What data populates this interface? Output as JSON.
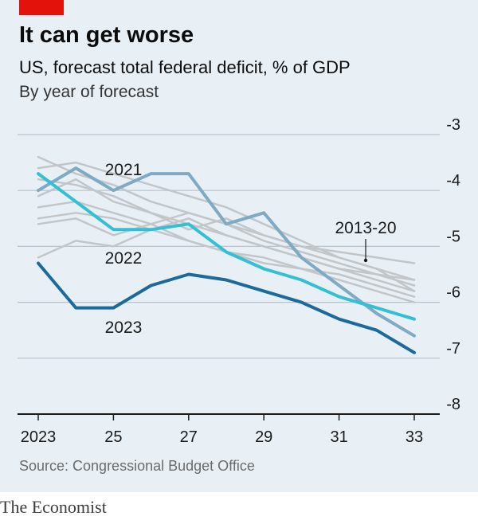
{
  "brand_name": "The Economist",
  "source": "Source: Congressional Budget Office",
  "colors": {
    "background": "#e8f0f6",
    "accent_red": "#e3120b",
    "grid": "#b7c2c9",
    "series_2013_20": "#c3c6c9",
    "series_2021": "#7eaac4",
    "series_2022": "#33c0d4",
    "series_2023": "#1b6a9b"
  },
  "chart_data": {
    "type": "line",
    "title": "It can get worse",
    "subtitle": "US, forecast total federal deficit, % of GDP",
    "description": "By year of forecast",
    "xlabel": "",
    "ylabel": "",
    "x": [
      2023,
      2024,
      2025,
      2026,
      2027,
      2028,
      2029,
      2030,
      2031,
      2032,
      2033
    ],
    "x_tick_values": [
      2023,
      2025,
      2027,
      2029,
      2031,
      2033
    ],
    "x_tick_labels": [
      "2023",
      "25",
      "27",
      "29",
      "31",
      "33"
    ],
    "ylim": [
      -8,
      -3
    ],
    "y_tick_values": [
      -3,
      -4,
      -5,
      -6,
      -7,
      -8
    ],
    "y_tick_labels": [
      "-3",
      "-4",
      "-5",
      "-6",
      "-7",
      "-8"
    ],
    "y_axis_position": "right",
    "grid": true,
    "series": [
      {
        "name": "2013-20",
        "values": [
          -3.4,
          -3.7,
          -3.9,
          -4.2,
          -4.4,
          -4.6,
          -4.8,
          -5.0,
          -5.1,
          -5.2,
          -5.3
        ],
        "color": "#c3c6c9",
        "width": 2.5
      },
      {
        "name": "",
        "values": [
          -3.6,
          -3.5,
          -3.7,
          -3.9,
          -4.1,
          -4.3,
          -4.6,
          -4.9,
          -5.2,
          -5.4,
          -5.6
        ],
        "color": "#c3c6c9",
        "width": 2.5
      },
      {
        "name": "",
        "values": [
          -3.8,
          -3.9,
          -4.1,
          -4.4,
          -4.6,
          -4.8,
          -5.0,
          -5.2,
          -5.4,
          -5.5,
          -5.7
        ],
        "color": "#c3c6c9",
        "width": 2.5
      },
      {
        "name": "",
        "values": [
          -4.1,
          -3.8,
          -4.2,
          -4.4,
          -4.7,
          -4.5,
          -4.8,
          -5.0,
          -5.2,
          -5.4,
          -5.8
        ],
        "color": "#c3c6c9",
        "width": 2.5
      },
      {
        "name": "",
        "values": [
          -4.3,
          -4.2,
          -4.4,
          -4.6,
          -4.9,
          -5.1,
          -5.3,
          -5.4,
          -5.6,
          -5.8,
          -6.0
        ],
        "color": "#c3c6c9",
        "width": 2.5
      },
      {
        "name": "",
        "values": [
          -4.5,
          -4.4,
          -4.5,
          -4.7,
          -4.9,
          -5.1,
          -5.2,
          -5.4,
          -5.5,
          -5.7,
          -5.9
        ],
        "color": "#c3c6c9",
        "width": 2.5
      },
      {
        "name": "",
        "values": [
          -4.6,
          -4.5,
          -4.8,
          -4.6,
          -4.4,
          -4.6,
          -4.9,
          -5.1,
          -5.3,
          -5.5,
          -5.6
        ],
        "color": "#c3c6c9",
        "width": 2.5
      },
      {
        "name": "",
        "values": [
          -5.2,
          -4.9,
          -5.0,
          -4.7,
          -4.5,
          -4.8,
          -5.0,
          -5.2,
          -5.4,
          -5.6,
          -5.8
        ],
        "color": "#c3c6c9",
        "width": 2.5
      },
      {
        "name": "2021",
        "values": [
          -4.0,
          -3.6,
          -4.0,
          -3.7,
          -3.7,
          -4.6,
          -4.4,
          -5.2,
          -5.7,
          -6.2,
          -6.6
        ],
        "color": "#7eaac4",
        "width": 4
      },
      {
        "name": "2022",
        "values": [
          -3.7,
          -4.2,
          -4.7,
          -4.7,
          -4.6,
          -5.1,
          -5.4,
          -5.6,
          -5.9,
          -6.1,
          -6.3
        ],
        "color": "#33c0d4",
        "width": 4
      },
      {
        "name": "2023",
        "values": [
          -5.3,
          -6.1,
          -6.1,
          -5.7,
          -5.5,
          -5.6,
          -5.8,
          -6.0,
          -6.3,
          -6.5,
          -6.9
        ],
        "color": "#1b6a9b",
        "width": 4
      }
    ]
  }
}
